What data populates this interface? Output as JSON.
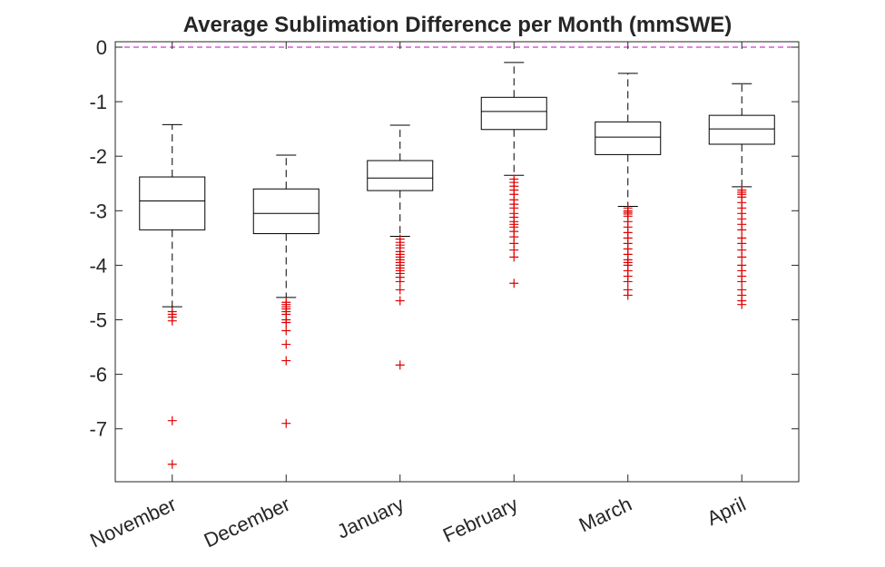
{
  "chart_data": {
    "type": "box",
    "title": "Average Sublimation Difference per Month (mmSWE)",
    "xlabel": "",
    "ylabel": "",
    "categories": [
      "November",
      "December",
      "January",
      "February",
      "March",
      "April"
    ],
    "ylim": [
      -7.97,
      0.1
    ],
    "yticks": [
      0,
      -1,
      -2,
      -3,
      -4,
      -5,
      -6,
      -7
    ],
    "reference_line": {
      "y": 0,
      "color": "#cc00cc",
      "style": "dashed"
    },
    "box_color": "#000000",
    "outlier_color": "#e00000",
    "boxes": [
      {
        "category": "November",
        "min": -4.76,
        "q1": -3.35,
        "median": -2.82,
        "q3": -2.38,
        "max": -1.42,
        "outliers": [
          -4.85,
          -4.9,
          -4.95,
          -5.02,
          -6.85,
          -7.65
        ]
      },
      {
        "category": "December",
        "min": -4.59,
        "q1": -3.42,
        "median": -3.05,
        "q3": -2.6,
        "max": -1.98,
        "outliers": [
          -4.68,
          -4.72,
          -4.76,
          -4.8,
          -4.85,
          -4.9,
          -5.0,
          -5.05,
          -5.2,
          -5.45,
          -5.75,
          -6.9
        ]
      },
      {
        "category": "January",
        "min": -3.47,
        "q1": -2.63,
        "median": -2.4,
        "q3": -2.08,
        "max": -1.43,
        "outliers": [
          -3.52,
          -3.58,
          -3.63,
          -3.68,
          -3.75,
          -3.8,
          -3.85,
          -3.9,
          -3.95,
          -4.0,
          -4.05,
          -4.1,
          -4.15,
          -4.22,
          -4.3,
          -4.45,
          -4.65,
          -5.83
        ]
      },
      {
        "category": "February",
        "min": -2.35,
        "q1": -1.51,
        "median": -1.18,
        "q3": -0.92,
        "max": -0.28,
        "outliers": [
          -2.42,
          -2.48,
          -2.55,
          -2.62,
          -2.7,
          -2.8,
          -2.88,
          -2.95,
          -3.05,
          -3.12,
          -3.2,
          -3.25,
          -3.3,
          -3.38,
          -3.48,
          -3.6,
          -3.72,
          -3.85,
          -4.33
        ]
      },
      {
        "category": "March",
        "min": -2.92,
        "q1": -1.97,
        "median": -1.65,
        "q3": -1.37,
        "max": -0.48,
        "outliers": [
          -2.95,
          -3.0,
          -3.03,
          -3.06,
          -3.1,
          -3.2,
          -3.3,
          -3.4,
          -3.5,
          -3.6,
          -3.7,
          -3.8,
          -3.9,
          -3.95,
          -4.0,
          -4.1,
          -4.2,
          -4.3,
          -4.45,
          -4.55
        ]
      },
      {
        "category": "April",
        "min": -2.56,
        "q1": -1.78,
        "median": -1.5,
        "q3": -1.25,
        "max": -0.67,
        "outliers": [
          -2.62,
          -2.66,
          -2.7,
          -2.75,
          -2.85,
          -2.95,
          -3.05,
          -3.15,
          -3.25,
          -3.35,
          -3.5,
          -3.6,
          -3.72,
          -3.85,
          -4.0,
          -4.1,
          -4.2,
          -4.3,
          -4.45,
          -4.55,
          -4.65,
          -4.72
        ]
      }
    ]
  }
}
